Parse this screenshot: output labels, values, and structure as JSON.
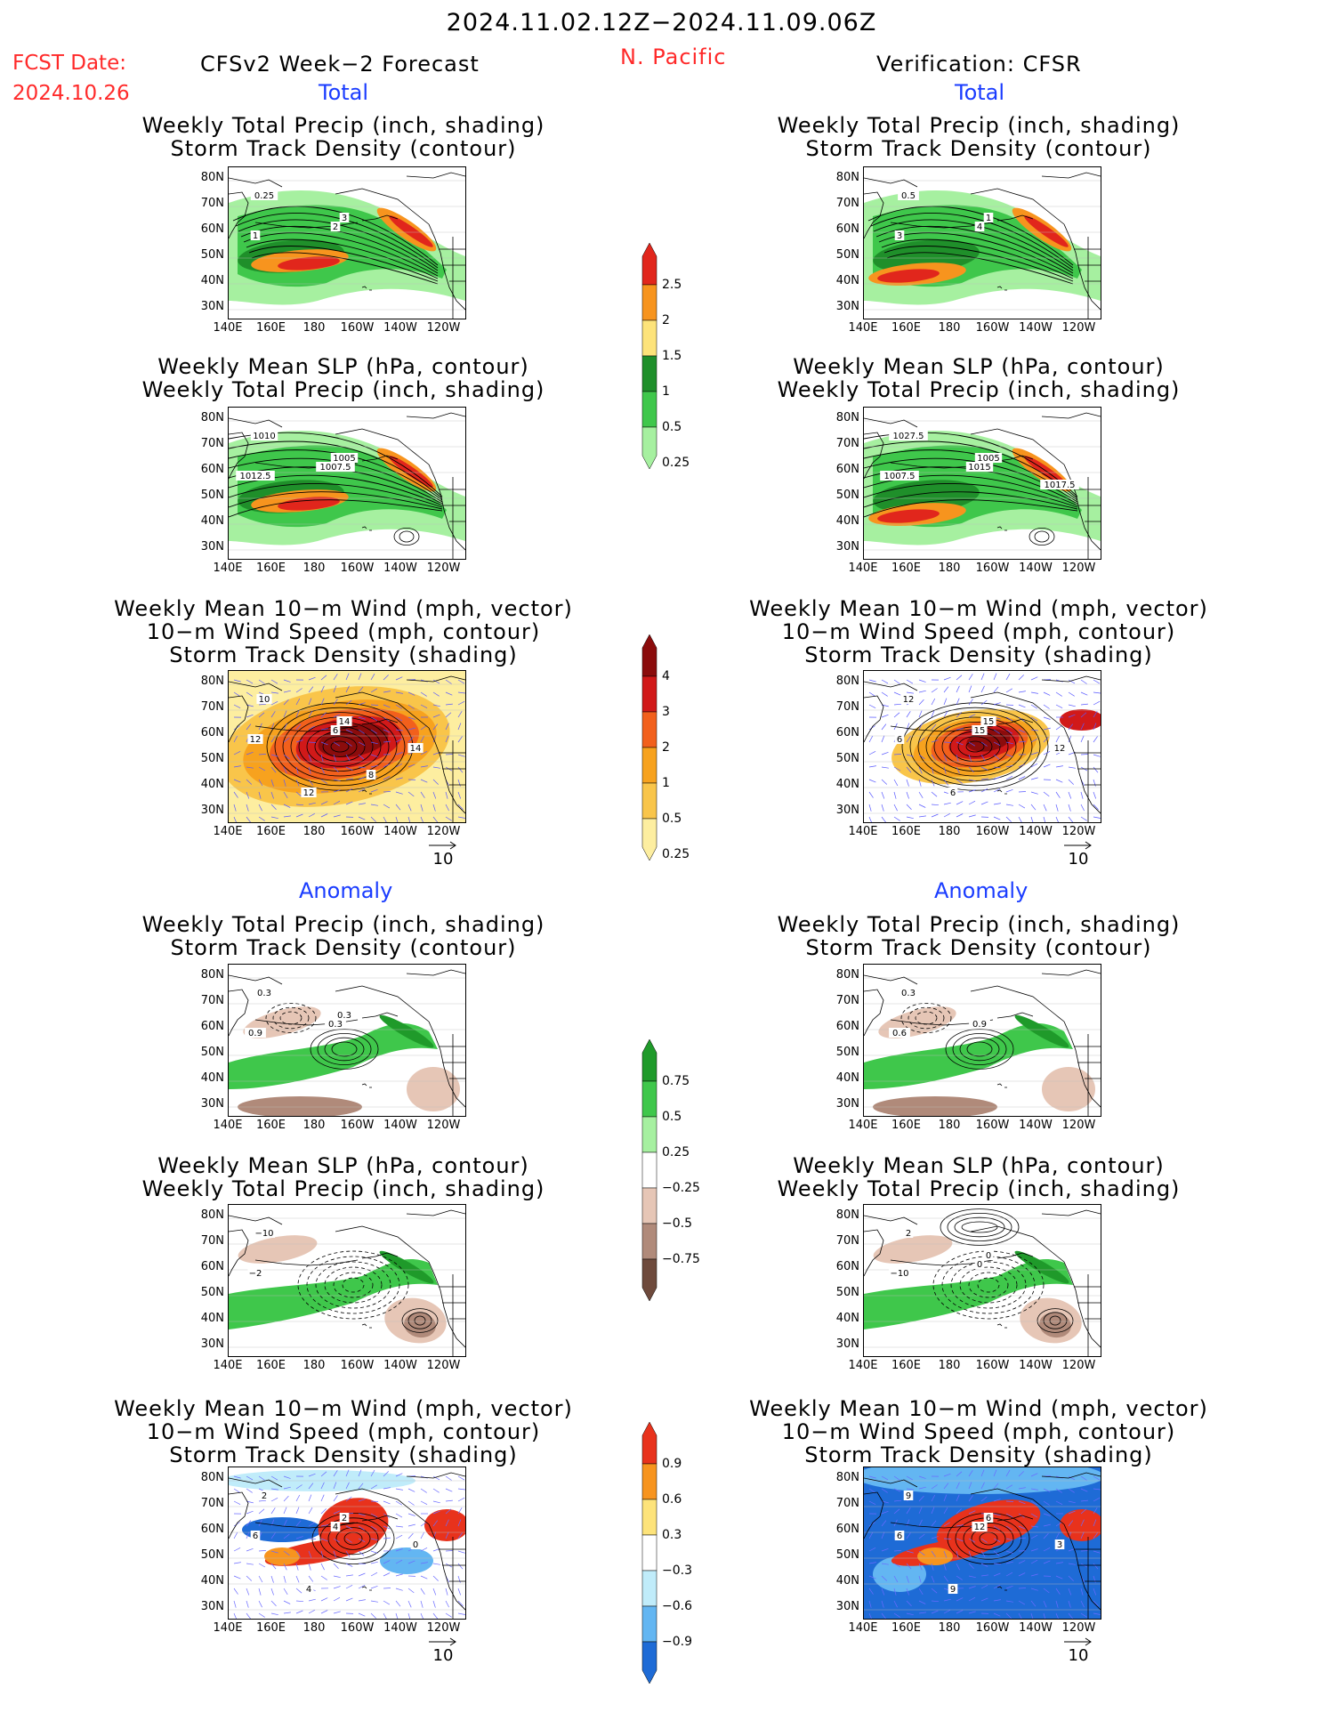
{
  "header": {
    "date_range": "2024.11.02.12Z−2024.11.09.06Z",
    "fcst_label": "FCST Date:",
    "fcst_date": "2024.10.26",
    "left_title": "CFSv2 Week−2 Forecast",
    "region": "N. Pacific",
    "right_title": "Verification: CFSR"
  },
  "sections": {
    "total": "Total",
    "anomaly": "Anomaly"
  },
  "panel_titles": {
    "precip_track": [
      "Weekly Total Precip (inch, shading)",
      "Storm Track Density (contour)"
    ],
    "slp_precip": [
      "Weekly Mean SLP (hPa, contour)",
      "Weekly Total Precip (inch, shading)"
    ],
    "wind_track": [
      "Weekly Mean 10−m Wind (mph, vector)",
      "10−m Wind Speed (mph, contour)",
      "Storm Track Density (shading)"
    ]
  },
  "axes": {
    "lat_labels": [
      "80N",
      "70N",
      "60N",
      "50N",
      "40N",
      "30N"
    ],
    "lon_labels": [
      "140E",
      "160E",
      "180",
      "160W",
      "140W",
      "120W"
    ]
  },
  "ref_vector": "10",
  "colorbars": {
    "precip_total": {
      "labels": [
        "2.5",
        "2",
        "1.5",
        "1",
        "0.5",
        "0.25"
      ],
      "colors": [
        "#e1261c",
        "#f7941e",
        "#fde37a",
        "#1f8f2a",
        "#3fc74b",
        "#a6f0a0"
      ]
    },
    "track_total": {
      "labels": [
        "4",
        "3",
        "2",
        "1",
        "0.5",
        "0.25"
      ],
      "colors": [
        "#8b0c0c",
        "#d11919",
        "#f2601c",
        "#f7a21e",
        "#f9c54a",
        "#fdeea0"
      ]
    },
    "precip_anom": {
      "labels": [
        "0.75",
        "0.5",
        "0.25",
        "−0.25",
        "−0.5",
        "−0.75"
      ],
      "colors": [
        "#1f9a2a",
        "#3fc74b",
        "#a6f0a0",
        "#ffffff",
        "#e6c6b6",
        "#b08a7a",
        "#6e4a3c"
      ]
    },
    "track_anom": {
      "labels": [
        "0.9",
        "0.6",
        "0.3",
        "−0.3",
        "−0.6",
        "−0.9"
      ],
      "colors": [
        "#e8321c",
        "#f7941e",
        "#fde37a",
        "#ffffff",
        "#c0ecfa",
        "#63b6f2",
        "#1e6bd6"
      ]
    }
  },
  "panels": {
    "L1": {
      "contour_labels": [
        "0.25",
        "1",
        "2",
        "3"
      ]
    },
    "R1": {
      "contour_labels": [
        "0.5",
        "3",
        "4",
        "1"
      ]
    },
    "L2": {
      "contour_labels": [
        "1010",
        "1012.5",
        "1007.5",
        "1005"
      ]
    },
    "R2": {
      "contour_labels": [
        "1027.5",
        "1007.5",
        "1015",
        "1005",
        "1017.5"
      ]
    },
    "L3": {
      "contour_labels": [
        "10",
        "12",
        "6",
        "14",
        "14",
        "12",
        "8"
      ]
    },
    "R3": {
      "contour_labels": [
        "12",
        "6",
        "15",
        "15",
        "12",
        "6"
      ]
    },
    "L4": {
      "contour_labels": [
        "0.3",
        "0.9",
        "0.3",
        "0.3"
      ]
    },
    "R4": {
      "contour_labels": [
        "0.3",
        "0.6",
        "0.9"
      ]
    },
    "L5": {
      "contour_labels": [
        "−10",
        "−2"
      ]
    },
    "R5": {
      "contour_labels": [
        "2",
        "−10",
        "0",
        "0"
      ]
    },
    "L6": {
      "contour_labels": [
        "2",
        "6",
        "4",
        "2",
        "0",
        "4"
      ]
    },
    "R6": {
      "contour_labels": [
        "9",
        "6",
        "12",
        "6",
        "3",
        "9"
      ]
    }
  }
}
